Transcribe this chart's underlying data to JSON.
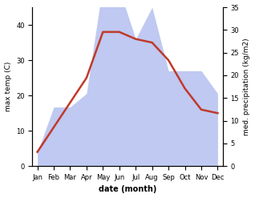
{
  "months": [
    "Jan",
    "Feb",
    "Mar",
    "Apr",
    "May",
    "Jun",
    "Jul",
    "Aug",
    "Sep",
    "Oct",
    "Nov",
    "Dec"
  ],
  "temp": [
    4,
    11,
    18,
    25,
    38,
    38,
    36,
    35,
    30,
    22,
    16,
    15
  ],
  "precip": [
    3,
    13,
    13,
    16,
    40,
    39,
    28,
    35,
    21,
    21,
    21,
    16
  ],
  "temp_color": "#c0392b",
  "precip_fill_color": "#b8c4f0",
  "ylabel_left": "max temp (C)",
  "ylabel_right": "med. precipitation (kg/m2)",
  "ylim_left": [
    0,
    45
  ],
  "ylim_right": [
    0,
    35
  ],
  "yticks_left": [
    0,
    10,
    20,
    30,
    40
  ],
  "yticks_right": [
    0,
    5,
    10,
    15,
    20,
    25,
    30,
    35
  ],
  "xlabel": "date (month)",
  "line_width": 1.8,
  "bg_color": "#ffffff"
}
